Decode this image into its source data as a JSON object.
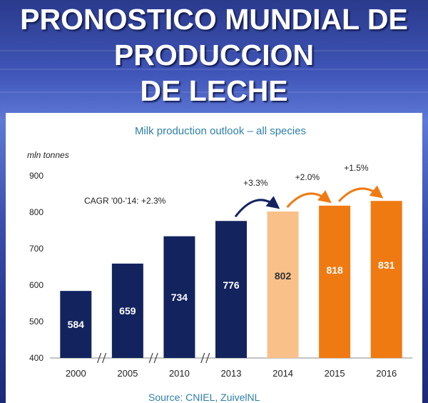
{
  "slide": {
    "title_lines": [
      "PRONOSTICO MUNDIAL DE",
      "PRODUCCION",
      "DE LECHE"
    ]
  },
  "chart_data": {
    "type": "bar",
    "title": "Milk production outlook – all species",
    "ylabel": "mln tonnes",
    "xlabel": "",
    "categories": [
      "2000",
      "2005",
      "2010",
      "2013",
      "2014",
      "2015",
      "2016"
    ],
    "values": [
      584,
      659,
      734,
      776,
      802,
      818,
      831
    ],
    "ylim": [
      400,
      900
    ],
    "yticks": [
      400,
      500,
      600,
      700,
      800,
      900
    ],
    "bar_colors": [
      "#13235e",
      "#13235e",
      "#13235e",
      "#13235e",
      "#f9c08a",
      "#f07a12",
      "#f07a12"
    ],
    "label_colors": [
      "#ffffff",
      "#ffffff",
      "#ffffff",
      "#ffffff",
      "#333333",
      "#ffffff",
      "#ffffff"
    ],
    "axis_breaks_after": [
      "2000",
      "2005",
      "2010"
    ],
    "annotation": "CAGR '00-'14: +2.3%",
    "growth_labels": [
      {
        "text": "+3.3%",
        "from": "2013",
        "to": "2014",
        "color": "#13235e"
      },
      {
        "text": "+2.0%",
        "from": "2014",
        "to": "2015",
        "color": "#f07a12"
      },
      {
        "text": "+1.5%",
        "from": "2015",
        "to": "2016",
        "color": "#f07a12"
      }
    ],
    "source": "Source: CNIEL, ZuivelNL",
    "grid": false
  }
}
